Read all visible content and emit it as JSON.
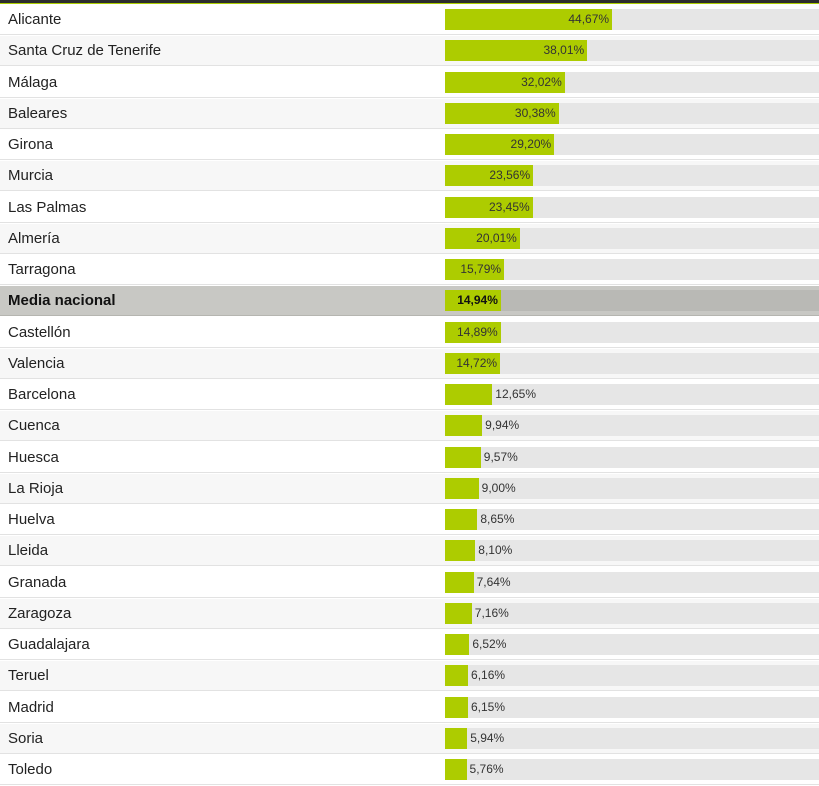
{
  "colors": {
    "bar": "#adcc00",
    "track": "#e6e6e6",
    "highlight_row": "#c8c8c4",
    "top_border": "#2d2d2d"
  },
  "chart_data": {
    "type": "bar",
    "orientation": "horizontal",
    "xlim": [
      0,
      100
    ],
    "grid": false,
    "categories": [
      "Alicante",
      "Santa Cruz de Tenerife",
      "Málaga",
      "Baleares",
      "Girona",
      "Murcia",
      "Las Palmas",
      "Almería",
      "Tarragona",
      "Media nacional",
      "Castellón",
      "Valencia",
      "Barcelona",
      "Cuenca",
      "Huesca",
      "La Rioja",
      "Huelva",
      "Lleida",
      "Granada",
      "Zaragoza",
      "Guadalajara",
      "Teruel",
      "Madrid",
      "Soria",
      "Toledo"
    ],
    "values": [
      44.67,
      38.01,
      32.02,
      30.38,
      29.2,
      23.56,
      23.45,
      20.01,
      15.79,
      14.94,
      14.89,
      14.72,
      12.65,
      9.94,
      9.57,
      9.0,
      8.65,
      8.1,
      7.64,
      7.16,
      6.52,
      6.16,
      6.15,
      5.94,
      5.76
    ],
    "value_labels": [
      "44,67%",
      "38,01%",
      "32,02%",
      "30,38%",
      "29,20%",
      "23,56%",
      "23,45%",
      "20,01%",
      "15,79%",
      "14,94%",
      "14,89%",
      "14,72%",
      "12,65%",
      "9,94%",
      "9,57%",
      "9,00%",
      "8,65%",
      "8,10%",
      "7,64%",
      "7,16%",
      "6,52%",
      "6,16%",
      "6,15%",
      "5,94%",
      "5,76%"
    ],
    "highlight_category": "Media nacional"
  }
}
